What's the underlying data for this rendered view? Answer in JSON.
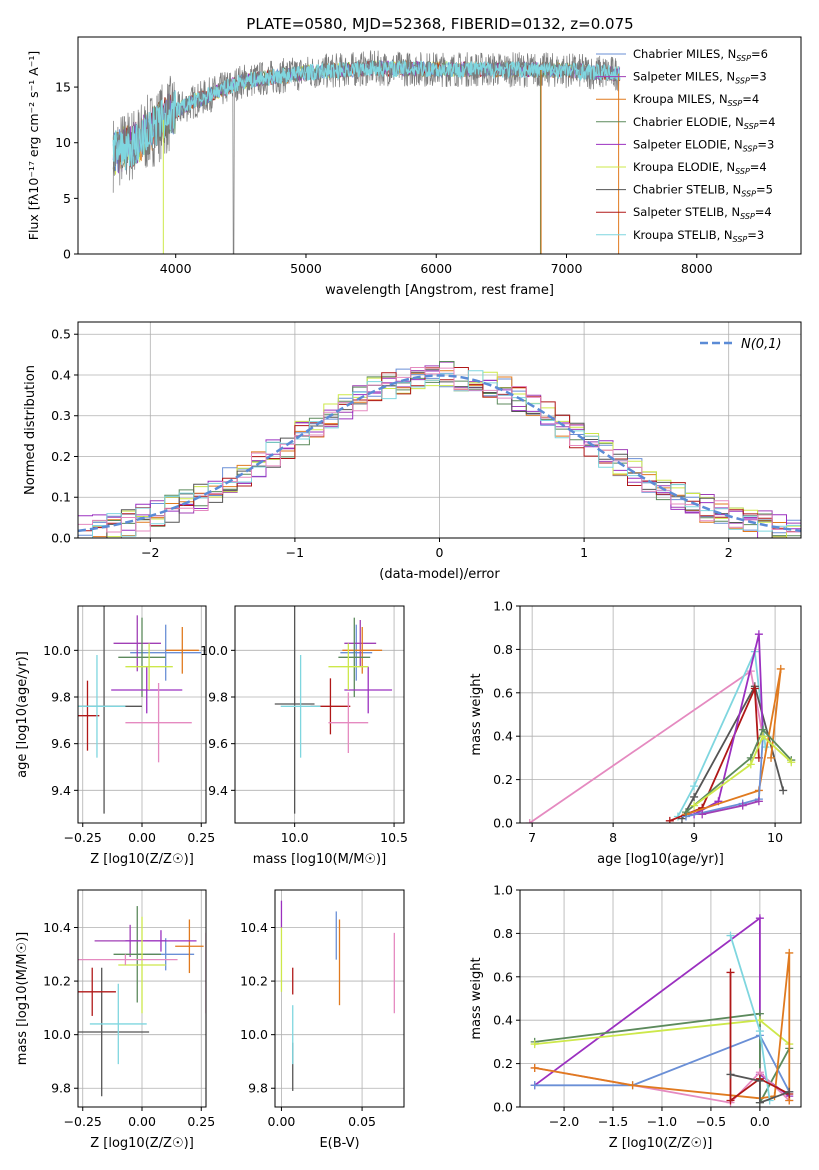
{
  "figure_title": "PLATE=0580, MJD=52368, FIBERID=0132, z=0.075",
  "colors": {
    "Chabrier MILES": "#6a8fd6",
    "Salpeter MILES": "#a03fb6",
    "Kroupa MILES": "#e07a1f",
    "Chabrier ELODIE": "#5c8a5c",
    "Salpeter ELODIE": "#9b30c0",
    "Kroupa ELODIE": "#cde84a",
    "Chabrier STELIB": "#555555",
    "Salpeter STELIB": "#b01818",
    "Kroupa STELIB": "#7fd6df",
    "pink": "#e58ac0",
    "gauss": "#5b8bd6"
  },
  "legend": [
    {
      "key": "Chabrier MILES",
      "label": "Chabrier MILES, N",
      "sub": "SSP",
      "tail": "=6"
    },
    {
      "key": "Salpeter MILES",
      "label": "Salpeter MILES, N",
      "sub": "SSP",
      "tail": "=3"
    },
    {
      "key": "Kroupa MILES",
      "label": "Kroupa MILES, N",
      "sub": "SSP",
      "tail": "=4"
    },
    {
      "key": "Chabrier ELODIE",
      "label": "Chabrier ELODIE, N",
      "sub": "SSP",
      "tail": "=4"
    },
    {
      "key": "Salpeter ELODIE",
      "label": "Salpeter ELODIE, N",
      "sub": "SSP",
      "tail": "=3"
    },
    {
      "key": "Kroupa ELODIE",
      "label": "Kroupa ELODIE, N",
      "sub": "SSP",
      "tail": "=4"
    },
    {
      "key": "Chabrier STELIB",
      "label": "Chabrier STELIB, N",
      "sub": "SSP",
      "tail": "=5"
    },
    {
      "key": "Salpeter STELIB",
      "label": "Salpeter STELIB, N",
      "sub": "SSP",
      "tail": "=4"
    },
    {
      "key": "Kroupa STELIB",
      "label": "Kroupa STELIB, N",
      "sub": "SSP",
      "tail": "=3"
    }
  ],
  "chart_data": [
    {
      "id": "spectrum",
      "type": "line",
      "xlabel": "wavelength [Angstrom, rest frame]",
      "ylabel": "Flux [fλ10⁻¹⁷ erg cm⁻² s⁻¹ A⁻¹]",
      "xlim": [
        3250,
        8800
      ],
      "ylim": [
        0,
        19.5
      ],
      "xticks": [
        4000,
        5000,
        6000,
        7000,
        8000
      ],
      "yticks": [
        0,
        5,
        10,
        15
      ],
      "x_range_data": [
        3520,
        7410
      ],
      "flux_profile": [
        [
          3520,
          9
        ],
        [
          3700,
          10
        ],
        [
          3950,
          12.5
        ],
        [
          4100,
          13.5
        ],
        [
          4500,
          15.5
        ],
        [
          5000,
          16.3
        ],
        [
          5500,
          16.7
        ],
        [
          6000,
          16.6
        ],
        [
          6500,
          16.6
        ],
        [
          7000,
          16.5
        ],
        [
          7410,
          16.2
        ]
      ]
    },
    {
      "id": "residuals",
      "type": "histogram",
      "xlabel": "(data-model)/error",
      "ylabel": "Normed distribution",
      "xlim": [
        -2.5,
        2.5
      ],
      "ylim": [
        0,
        0.53
      ],
      "xticks": [
        -2,
        -1,
        0,
        1,
        2
      ],
      "yticks": [
        0.0,
        0.1,
        0.2,
        0.3,
        0.4,
        0.5
      ],
      "gauss_label": "N(0,1)",
      "bin_width": 0.1
    },
    {
      "id": "age_vs_Z",
      "type": "errorbar",
      "xlabel": "Z [log10(Z/Z☉)]",
      "ylabel": "age [log10(age/yr)]",
      "xlim": [
        -0.27,
        0.27
      ],
      "ylim": [
        9.26,
        10.19
      ],
      "xticks": [
        -0.25,
        0.0,
        0.25
      ],
      "yticks": [
        9.4,
        9.6,
        9.8,
        10.0
      ],
      "points": [
        {
          "key": "Chabrier MILES",
          "x": 0.1,
          "y": 9.99,
          "xe": 0.15,
          "ye": 0.12
        },
        {
          "key": "Salpeter MILES",
          "x": -0.02,
          "y": 10.03,
          "xe": 0.1,
          "ye": 0.12
        },
        {
          "key": "Kroupa MILES",
          "x": 0.17,
          "y": 10.0,
          "xe": 0.07,
          "ye": 0.1
        },
        {
          "key": "Chabrier ELODIE",
          "x": -0.0,
          "y": 9.97,
          "xe": 0.1,
          "ye": 0.17
        },
        {
          "key": "Salpeter ELODIE",
          "x": 0.02,
          "y": 9.83,
          "xe": 0.15,
          "ye": 0.1
        },
        {
          "key": "Kroupa ELODIE",
          "x": 0.03,
          "y": 9.93,
          "xe": 0.1,
          "ye": 0.1
        },
        {
          "key": "Chabrier STELIB",
          "x": -0.16,
          "y": 9.76,
          "xe": 0.16,
          "ye": 0.46
        },
        {
          "key": "Salpeter STELIB",
          "x": -0.23,
          "y": 9.72,
          "xe": 0.05,
          "ye": 0.15
        },
        {
          "key": "Kroupa STELIB",
          "x": -0.19,
          "y": 9.76,
          "xe": 0.12,
          "ye": 0.22
        },
        {
          "key": "pink",
          "x": 0.07,
          "y": 9.69,
          "xe": 0.14,
          "ye": 0.17
        }
      ]
    },
    {
      "id": "age_vs_mass",
      "type": "errorbar",
      "xlabel": "mass [log10(M/M☉)]",
      "ylabel": "",
      "xlim": [
        9.7,
        10.55
      ],
      "ylim": [
        9.26,
        10.19
      ],
      "xticks": [
        10.0,
        10.5
      ],
      "yticks": [
        9.4,
        9.6,
        9.8,
        10.0
      ],
      "points": [
        {
          "key": "Chabrier MILES",
          "x": 10.31,
          "y": 9.99,
          "xe": 0.08,
          "ye": 0.12
        },
        {
          "key": "Salpeter MILES",
          "x": 10.33,
          "y": 10.03,
          "xe": 0.08,
          "ye": 0.1
        },
        {
          "key": "Kroupa MILES",
          "x": 10.34,
          "y": 10.0,
          "xe": 0.1,
          "ye": 0.1
        },
        {
          "key": "Chabrier ELODIE",
          "x": 10.3,
          "y": 9.97,
          "xe": 0.08,
          "ye": 0.17
        },
        {
          "key": "Salpeter ELODIE",
          "x": 10.37,
          "y": 9.83,
          "xe": 0.12,
          "ye": 0.1
        },
        {
          "key": "Kroupa ELODIE",
          "x": 10.27,
          "y": 9.93,
          "xe": 0.1,
          "ye": 0.1
        },
        {
          "key": "Chabrier STELIB",
          "x": 10.0,
          "y": 9.77,
          "xe": 0.1,
          "ye": 0.47
        },
        {
          "key": "Salpeter STELIB",
          "x": 10.18,
          "y": 9.76,
          "xe": 0.1,
          "ye": 0.12
        },
        {
          "key": "Kroupa STELIB",
          "x": 10.03,
          "y": 9.76,
          "xe": 0.1,
          "ye": 0.22
        },
        {
          "key": "pink",
          "x": 10.27,
          "y": 9.69,
          "xe": 0.1,
          "ye": 0.13
        }
      ]
    },
    {
      "id": "weight_vs_age",
      "type": "line",
      "xlabel": "age [log10(age/yr)]",
      "ylabel": "mass weight",
      "xlim": [
        6.85,
        10.32
      ],
      "ylim": [
        0,
        1.0
      ],
      "xticks": [
        7,
        8,
        9,
        10
      ],
      "yticks": [
        0.0,
        0.2,
        0.4,
        0.6,
        0.8,
        1.0
      ],
      "series": [
        {
          "key": "pink",
          "points": [
            [
              6.97,
              0.0
            ],
            [
              9.7,
              0.7
            ],
            [
              9.85,
              0.4
            ]
          ]
        },
        {
          "key": "Kroupa STELIB",
          "points": [
            [
              8.8,
              0.03
            ],
            [
              9.0,
              0.17
            ],
            [
              9.75,
              0.79
            ],
            [
              9.88,
              0.35
            ]
          ]
        },
        {
          "key": "Chabrier STELIB",
          "points": [
            [
              8.85,
              0.02
            ],
            [
              9.0,
              0.12
            ],
            [
              9.75,
              0.63
            ],
            [
              10.1,
              0.15
            ]
          ]
        },
        {
          "key": "Salpeter STELIB",
          "points": [
            [
              8.7,
              0.01
            ],
            [
              9.1,
              0.07
            ],
            [
              9.75,
              0.62
            ],
            [
              9.8,
              0.3
            ]
          ]
        },
        {
          "key": "Salpeter ELODIE",
          "points": [
            [
              9.0,
              0.04
            ],
            [
              9.3,
              0.1
            ],
            [
              9.8,
              0.87
            ],
            [
              9.85,
              0.4
            ]
          ]
        },
        {
          "key": "Kroupa MILES",
          "points": [
            [
              8.9,
              0.04
            ],
            [
              9.8,
              0.15
            ],
            [
              10.07,
              0.71
            ],
            [
              9.95,
              0.3
            ]
          ]
        },
        {
          "key": "Chabrier MILES",
          "points": [
            [
              8.9,
              0.03
            ],
            [
              9.6,
              0.09
            ],
            [
              9.8,
              0.11
            ],
            [
              9.85,
              0.4
            ]
          ]
        },
        {
          "key": "Chabrier ELODIE",
          "points": [
            [
              8.9,
              0.05
            ],
            [
              9.7,
              0.3
            ],
            [
              9.85,
              0.43
            ],
            [
              10.2,
              0.29
            ]
          ]
        },
        {
          "key": "Kroupa ELODIE",
          "points": [
            [
              9.0,
              0.08
            ],
            [
              9.7,
              0.27
            ],
            [
              9.85,
              0.4
            ],
            [
              10.2,
              0.28
            ]
          ]
        },
        {
          "key": "Salpeter MILES",
          "points": [
            [
              9.1,
              0.04
            ],
            [
              9.6,
              0.08
            ],
            [
              9.8,
              0.1
            ]
          ]
        }
      ]
    },
    {
      "id": "mass_vs_Z",
      "type": "errorbar",
      "xlabel": "Z [log10(Z/Z☉)]",
      "ylabel": "mass [log10(M/M☉)]",
      "xlim": [
        -0.27,
        0.27
      ],
      "ylim": [
        9.73,
        10.54
      ],
      "xticks": [
        -0.25,
        0.0,
        0.25
      ],
      "yticks": [
        9.8,
        10.0,
        10.2,
        10.4
      ],
      "points": [
        {
          "key": "Chabrier MILES",
          "x": 0.1,
          "y": 10.3,
          "xe": 0.12,
          "ye": 0.06
        },
        {
          "key": "Salpeter MILES",
          "x": -0.05,
          "y": 10.35,
          "xe": 0.15,
          "ye": 0.06
        },
        {
          "key": "Kroupa MILES",
          "x": 0.2,
          "y": 10.33,
          "xe": 0.06,
          "ye": 0.1
        },
        {
          "key": "Chabrier ELODIE",
          "x": -0.02,
          "y": 10.3,
          "xe": 0.1,
          "ye": 0.18
        },
        {
          "key": "Salpeter ELODIE",
          "x": 0.08,
          "y": 10.35,
          "xe": 0.15,
          "ye": 0.04
        },
        {
          "key": "Kroupa ELODIE",
          "x": -0.0,
          "y": 10.26,
          "xe": 0.1,
          "ye": 0.18
        },
        {
          "key": "Chabrier STELIB",
          "x": -0.17,
          "y": 10.01,
          "xe": 0.2,
          "ye": 0.24
        },
        {
          "key": "Salpeter STELIB",
          "x": -0.21,
          "y": 10.16,
          "xe": 0.1,
          "ye": 0.09
        },
        {
          "key": "Kroupa STELIB",
          "x": -0.1,
          "y": 10.04,
          "xe": 0.12,
          "ye": 0.15
        },
        {
          "key": "pink",
          "x": -0.07,
          "y": 10.28,
          "xe": 0.22,
          "ye": 0.02
        },
        {
          "key": "pink",
          "x": 0.27,
          "y": 10.23,
          "xe": 0.0,
          "ye": 0.15
        }
      ]
    },
    {
      "id": "mass_vs_EBV",
      "type": "errorbar",
      "xlabel": "E(B-V)",
      "ylabel": "",
      "xlim": [
        -0.004,
        0.076
      ],
      "ylim": [
        9.73,
        10.54
      ],
      "xticks": [
        0.0,
        0.05
      ],
      "yticks": [
        9.8,
        10.0,
        10.2,
        10.4
      ],
      "points": [
        {
          "key": "Chabrier MILES",
          "x": 0.034,
          "y": 10.37,
          "xe": 0.0,
          "ye": 0.09
        },
        {
          "key": "Kroupa MILES",
          "x": 0.036,
          "y": 10.27,
          "xe": 0.0,
          "ye": 0.16
        },
        {
          "key": "Salpeter ELODIE",
          "x": 0.0,
          "y": 10.45,
          "xe": 0.0,
          "ye": 0.05
        },
        {
          "key": "Kroupa ELODIE",
          "x": 0.0,
          "y": 10.28,
          "xe": 0.0,
          "ye": 0.12
        },
        {
          "key": "Chabrier STELIB",
          "x": 0.007,
          "y": 9.88,
          "xe": 0.0,
          "ye": 0.09
        },
        {
          "key": "Salpeter STELIB",
          "x": 0.007,
          "y": 10.2,
          "xe": 0.0,
          "ye": 0.05
        },
        {
          "key": "Kroupa STELIB",
          "x": 0.007,
          "y": 10.0,
          "xe": 0.0,
          "ye": 0.11
        },
        {
          "key": "pink",
          "x": 0.07,
          "y": 10.23,
          "xe": 0.0,
          "ye": 0.15
        }
      ]
    },
    {
      "id": "weight_vs_Z",
      "type": "line",
      "xlabel": "Z [log10(Z/Z☉)]",
      "ylabel": "mass weight",
      "xlim": [
        -2.45,
        0.42
      ],
      "ylim": [
        0,
        1.0
      ],
      "xticks": [
        -2.0,
        -1.5,
        -1.0,
        -0.5,
        0.0
      ],
      "yticks": [
        0.0,
        0.2,
        0.4,
        0.6,
        0.8,
        1.0
      ],
      "series": [
        {
          "key": "Salpeter ELODIE",
          "points": [
            [
              -2.3,
              0.1
            ],
            [
              0.0,
              0.87
            ],
            [
              0.0,
              0.15
            ],
            [
              0.3,
              0.05
            ]
          ]
        },
        {
          "key": "Chabrier ELODIE",
          "points": [
            [
              -2.3,
              0.3
            ],
            [
              0.0,
              0.43
            ],
            [
              0.0,
              0.02
            ],
            [
              0.3,
              0.27
            ]
          ]
        },
        {
          "key": "Kroupa ELODIE",
          "points": [
            [
              -2.3,
              0.29
            ],
            [
              0.0,
              0.4
            ],
            [
              0.3,
              0.29
            ]
          ]
        },
        {
          "key": "pink",
          "points": [
            [
              -2.3,
              0.18
            ],
            [
              -0.3,
              0.02
            ],
            [
              0.0,
              0.16
            ],
            [
              0.3,
              0.03
            ]
          ]
        },
        {
          "key": "Chabrier MILES",
          "points": [
            [
              -2.3,
              0.1
            ],
            [
              -1.3,
              0.1
            ],
            [
              0.0,
              0.33
            ],
            [
              0.3,
              0.07
            ]
          ]
        },
        {
          "key": "Kroupa MILES",
          "points": [
            [
              -2.3,
              0.18
            ],
            [
              -1.3,
              0.1
            ],
            [
              0.0,
              0.04
            ],
            [
              0.15,
              0.05
            ],
            [
              0.3,
              0.71
            ],
            [
              0.3,
              0.03
            ]
          ]
        },
        {
          "key": "Kroupa STELIB",
          "points": [
            [
              -0.3,
              0.79
            ],
            [
              0.0,
              0.35
            ],
            [
              0.1,
              0.03
            ]
          ]
        },
        {
          "key": "Salpeter STELIB",
          "points": [
            [
              -0.3,
              0.62
            ],
            [
              -0.3,
              0.03
            ],
            [
              0.0,
              0.13
            ],
            [
              0.3,
              0.06
            ]
          ]
        },
        {
          "key": "Chabrier STELIB",
          "points": [
            [
              -0.3,
              0.15
            ],
            [
              0.0,
              0.12
            ],
            [
              0.0,
              0.02
            ],
            [
              0.3,
              0.07
            ]
          ]
        }
      ]
    }
  ]
}
